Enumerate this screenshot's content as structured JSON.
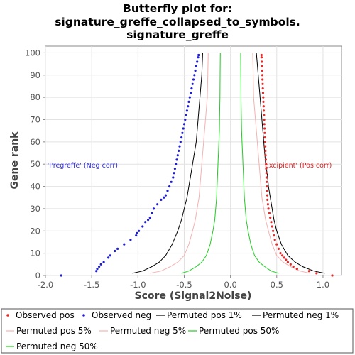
{
  "chart_data": {
    "type": "scatter",
    "title_lines": [
      "Butterfly plot for:",
      "signature_greffe_collapsed_to_symbols.",
      "signature_greffe"
    ],
    "xlabel": "Score (Signal2Noise)",
    "ylabel": "Gene rank",
    "xlim": [
      -2.0,
      1.2
    ],
    "ylim": [
      0,
      103
    ],
    "xticks": [
      -2.0,
      -1.5,
      -1.0,
      -0.5,
      0.0,
      0.5,
      1.0
    ],
    "xtick_labels": [
      "-2.0",
      "-1.5",
      "-1.0",
      "-0.5",
      "0.0",
      "0.5",
      "1.0"
    ],
    "yticks": [
      0,
      10,
      20,
      30,
      40,
      50,
      60,
      70,
      80,
      90,
      100
    ],
    "ytick_labels": [
      "0",
      "10",
      "20",
      "30",
      "40",
      "50",
      "60",
      "70",
      "80",
      "90",
      "100"
    ],
    "grid": true,
    "legend_placement": "bottom",
    "annotations": [
      {
        "text": "'Pregreffe' (Neg corr)",
        "x": -1.98,
        "y": 49.5,
        "color": "#2b2bd6"
      },
      {
        "text": "Excipient' (Pos corr)",
        "x": 0.37,
        "y": 49.5,
        "color": "#e02020"
      }
    ],
    "series": [
      {
        "name": "Observed pos",
        "kind": "points",
        "color": "#e32b2b",
        "y": [
          0,
          1,
          2,
          3,
          4,
          5,
          6,
          7,
          8,
          9,
          10,
          12,
          14,
          16,
          18,
          20,
          22,
          24,
          26,
          28,
          30,
          32,
          34,
          36,
          38,
          40,
          42,
          44,
          46,
          48,
          50,
          52,
          54,
          56,
          58,
          60,
          62,
          64,
          66,
          68,
          70,
          72,
          74,
          76,
          78,
          80,
          82,
          84,
          86,
          88,
          90,
          92,
          94,
          96,
          98,
          99
        ],
        "x": [
          1.1,
          0.93,
          0.85,
          0.72,
          0.68,
          0.65,
          0.62,
          0.6,
          0.58,
          0.56,
          0.54,
          0.52,
          0.5,
          0.48,
          0.47,
          0.46,
          0.45,
          0.44,
          0.43,
          0.42,
          0.41,
          0.405,
          0.4,
          0.398,
          0.396,
          0.394,
          0.392,
          0.39,
          0.388,
          0.386,
          0.384,
          0.382,
          0.38,
          0.378,
          0.376,
          0.374,
          0.372,
          0.37,
          0.368,
          0.366,
          0.364,
          0.362,
          0.36,
          0.358,
          0.356,
          0.354,
          0.352,
          0.35,
          0.348,
          0.346,
          0.344,
          0.342,
          0.34,
          0.338,
          0.336,
          0.335
        ]
      },
      {
        "name": "Observed neg",
        "kind": "points",
        "color": "#1f1fd1",
        "y": [
          0,
          2,
          3,
          4,
          5,
          6,
          8,
          9,
          11,
          12,
          14,
          16,
          18,
          19,
          20,
          22,
          24,
          25,
          26,
          28,
          30,
          32,
          34,
          35,
          36,
          38,
          40,
          42,
          44,
          46,
          48,
          50,
          52,
          54,
          56,
          58,
          60,
          62,
          64,
          66,
          68,
          70,
          72,
          74,
          76,
          78,
          80,
          82,
          84,
          86,
          88,
          90,
          92,
          94,
          96,
          98,
          99
        ],
        "x": [
          -1.83,
          -1.45,
          -1.44,
          -1.42,
          -1.4,
          -1.37,
          -1.32,
          -1.3,
          -1.25,
          -1.22,
          -1.15,
          -1.08,
          -1.02,
          -1.01,
          -0.99,
          -0.95,
          -0.92,
          -0.89,
          -0.87,
          -0.85,
          -0.83,
          -0.79,
          -0.75,
          -0.72,
          -0.7,
          -0.68,
          -0.66,
          -0.64,
          -0.62,
          -0.61,
          -0.6,
          -0.59,
          -0.58,
          -0.57,
          -0.56,
          -0.55,
          -0.54,
          -0.53,
          -0.52,
          -0.51,
          -0.5,
          -0.49,
          -0.48,
          -0.47,
          -0.46,
          -0.45,
          -0.44,
          -0.43,
          -0.42,
          -0.41,
          -0.4,
          -0.39,
          -0.38,
          -0.37,
          -0.36,
          -0.35,
          -0.345
        ]
      },
      {
        "name": "Permuted pos 1%",
        "kind": "line",
        "color": "#000000",
        "x": [
          1.02,
          0.9,
          0.78,
          0.7,
          0.62,
          0.55,
          0.5,
          0.47,
          0.45,
          0.43,
          0.41,
          0.4,
          0.38,
          0.37,
          0.36,
          0.35,
          0.34,
          0.33,
          0.32,
          0.31,
          0.3,
          0.29,
          0.28
        ],
        "y": [
          1,
          2,
          4,
          6,
          9,
          14,
          20,
          25,
          30,
          35,
          40,
          45,
          50,
          55,
          60,
          65,
          70,
          75,
          80,
          85,
          90,
          95,
          100
        ]
      },
      {
        "name": "Permuted neg 1%",
        "kind": "line",
        "color": "#000000",
        "x": [
          -1.06,
          -0.95,
          -0.85,
          -0.77,
          -0.7,
          -0.63,
          -0.57,
          -0.53,
          -0.5,
          -0.47,
          -0.45,
          -0.43,
          -0.41,
          -0.39,
          -0.37,
          -0.36,
          -0.35,
          -0.34,
          -0.33,
          -0.32,
          -0.31,
          -0.3
        ],
        "y": [
          1,
          2,
          4,
          6,
          9,
          14,
          20,
          25,
          30,
          35,
          40,
          45,
          50,
          55,
          60,
          65,
          70,
          75,
          80,
          85,
          90,
          100
        ]
      },
      {
        "name": "Permuted pos 5%",
        "kind": "line",
        "color": "#f4b2b2",
        "x": [
          0.86,
          0.75,
          0.65,
          0.57,
          0.5,
          0.45,
          0.41,
          0.38,
          0.36,
          0.34,
          0.33,
          0.32,
          0.31,
          0.3,
          0.29,
          0.28,
          0.27,
          0.26,
          0.25,
          0.245,
          0.24
        ],
        "y": [
          1,
          2,
          4,
          6,
          9,
          14,
          20,
          25,
          30,
          35,
          40,
          45,
          50,
          55,
          60,
          65,
          70,
          75,
          80,
          90,
          100
        ]
      },
      {
        "name": "Permuted neg 5%",
        "kind": "line",
        "color": "#f4b2b2",
        "x": [
          -0.87,
          -0.75,
          -0.65,
          -0.57,
          -0.5,
          -0.45,
          -0.41,
          -0.38,
          -0.36,
          -0.34,
          -0.33,
          -0.32,
          -0.31,
          -0.3,
          -0.29,
          -0.28,
          -0.27,
          -0.26,
          -0.25,
          -0.245,
          -0.24
        ],
        "y": [
          1,
          2,
          4,
          6,
          9,
          14,
          20,
          25,
          30,
          35,
          40,
          45,
          50,
          55,
          60,
          65,
          70,
          75,
          80,
          90,
          100
        ]
      },
      {
        "name": "Permuted pos 50%",
        "kind": "line",
        "color": "#22cc22",
        "x": [
          0.52,
          0.44,
          0.37,
          0.31,
          0.26,
          0.22,
          0.19,
          0.17,
          0.16,
          0.15,
          0.145,
          0.14,
          0.135,
          0.13,
          0.125,
          0.12,
          0.118,
          0.116,
          0.114,
          0.112,
          0.11
        ],
        "y": [
          1,
          2,
          4,
          6,
          9,
          14,
          20,
          25,
          30,
          35,
          40,
          45,
          50,
          55,
          60,
          65,
          70,
          75,
          80,
          90,
          100
        ]
      },
      {
        "name": "Permuted neg 50%",
        "kind": "line",
        "color": "#22cc22",
        "x": [
          -0.53,
          -0.45,
          -0.37,
          -0.31,
          -0.26,
          -0.22,
          -0.19,
          -0.17,
          -0.16,
          -0.15,
          -0.145,
          -0.14,
          -0.135,
          -0.13,
          -0.125,
          -0.12,
          -0.118,
          -0.116,
          -0.114,
          -0.112,
          -0.11
        ],
        "y": [
          1,
          2,
          4,
          6,
          9,
          14,
          20,
          25,
          30,
          35,
          40,
          45,
          50,
          55,
          60,
          65,
          70,
          75,
          80,
          90,
          100
        ]
      }
    ]
  }
}
